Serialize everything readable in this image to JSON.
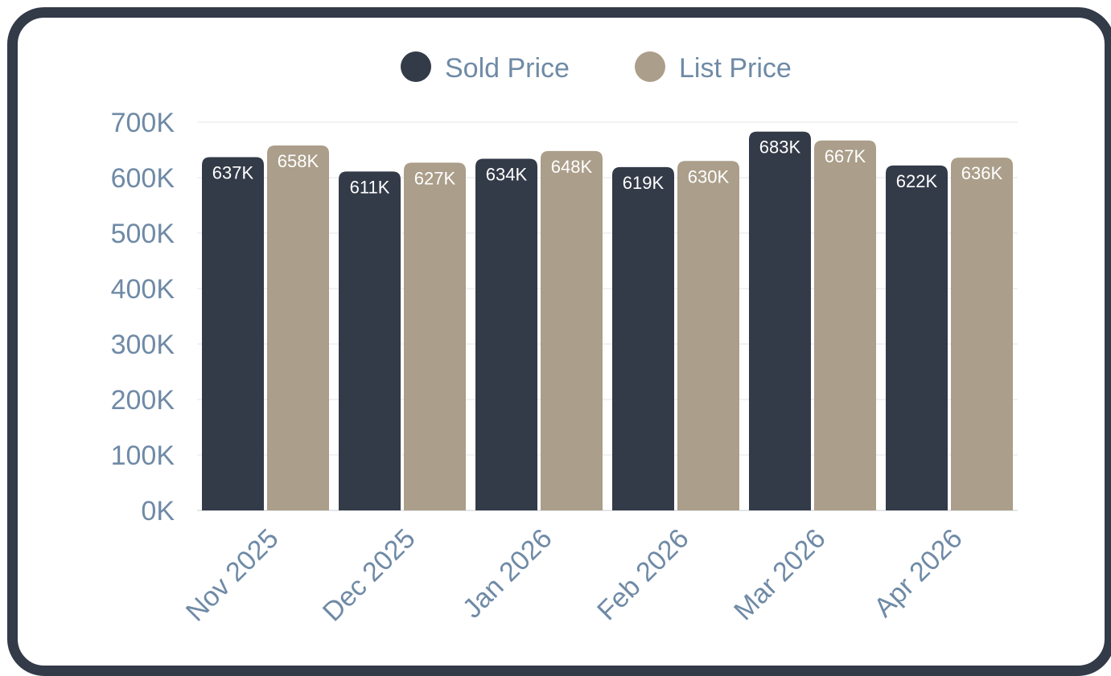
{
  "chart_data": {
    "type": "bar",
    "categories": [
      "Nov 2025",
      "Dec 2025",
      "Jan 2026",
      "Feb 2026",
      "Mar 2026",
      "Apr 2026"
    ],
    "series": [
      {
        "name": "Sold Price",
        "color": "#333a48",
        "values": [
          637000,
          611000,
          634000,
          619000,
          683000,
          622000
        ],
        "labels": [
          "637K",
          "611K",
          "634K",
          "619K",
          "683K",
          "622K"
        ]
      },
      {
        "name": "List Price",
        "color": "#ab9e8a",
        "values": [
          658000,
          627000,
          648000,
          630000,
          667000,
          636000
        ],
        "labels": [
          "658K",
          "627K",
          "648K",
          "630K",
          "667K",
          "636K"
        ]
      }
    ],
    "yticks": [
      {
        "value": 0,
        "label": "0K"
      },
      {
        "value": 100000,
        "label": "100K"
      },
      {
        "value": 200000,
        "label": "200K"
      },
      {
        "value": 300000,
        "label": "300K"
      },
      {
        "value": 400000,
        "label": "400K"
      },
      {
        "value": 500000,
        "label": "500K"
      },
      {
        "value": 600000,
        "label": "600K"
      },
      {
        "value": 700000,
        "label": "700K"
      }
    ],
    "ylim": [
      0,
      700000
    ],
    "legend_position": "top-center",
    "grid": true
  },
  "colors": {
    "frame": "#333a48",
    "axis_text": "#6f8aa6",
    "grid": "#e3e6ea"
  }
}
